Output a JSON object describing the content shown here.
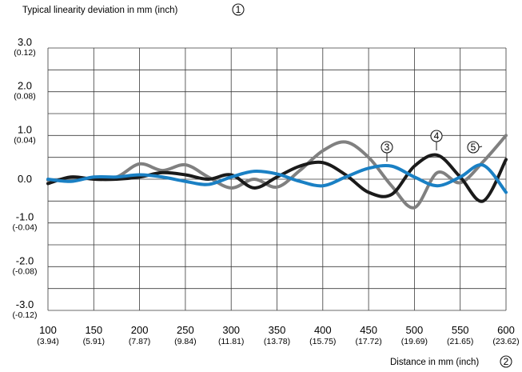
{
  "chart_data": {
    "type": "line",
    "ylabel": "Typical linearity deviation in mm (inch)",
    "ylabel_marker": "1",
    "xlabel": "Distance in mm (inch)",
    "xlabel_marker": "2",
    "xlim": [
      100,
      600
    ],
    "ylim": [
      -3.0,
      3.0
    ],
    "grid": true,
    "x_ticks": [
      {
        "main": "100",
        "sub": "(3.94)"
      },
      {
        "main": "150",
        "sub": "(5.91)"
      },
      {
        "main": "200",
        "sub": "(7.87)"
      },
      {
        "main": "250",
        "sub": "(9.84)"
      },
      {
        "main": "300",
        "sub": "(11.81)"
      },
      {
        "main": "350",
        "sub": "(13.78)"
      },
      {
        "main": "400",
        "sub": "(15.75)"
      },
      {
        "main": "450",
        "sub": "(17.72)"
      },
      {
        "main": "500",
        "sub": "(19.69)"
      },
      {
        "main": "550",
        "sub": "(21.65)"
      },
      {
        "main": "600",
        "sub": "(23.62)"
      }
    ],
    "x_tick_values": [
      100,
      150,
      200,
      250,
      300,
      350,
      400,
      450,
      500,
      550,
      600
    ],
    "y_ticks": [
      {
        "value": 3.0,
        "main": "3.0",
        "sub": "(0.12)"
      },
      {
        "value": 2.0,
        "main": "2.0",
        "sub": "(0.08)"
      },
      {
        "value": 1.0,
        "main": "1.0",
        "sub": "(0.04)"
      },
      {
        "value": 0.0,
        "main": "0.0",
        "sub": ""
      },
      {
        "value": -1.0,
        "main": "-1.0",
        "sub": "(-0.04)"
      },
      {
        "value": -2.0,
        "main": "-2.0",
        "sub": "(-0.08)"
      },
      {
        "value": -3.0,
        "main": "-3.0",
        "sub": "(-0.12)"
      }
    ],
    "series": [
      {
        "marker": "3",
        "color": "#1a80c4",
        "x": [
          100,
          125,
          150,
          175,
          200,
          225,
          250,
          275,
          300,
          325,
          350,
          375,
          400,
          425,
          450,
          475,
          500,
          525,
          550,
          575,
          600
        ],
        "y": [
          0.0,
          -0.05,
          0.05,
          0.05,
          0.1,
          0.05,
          -0.05,
          -0.12,
          0.05,
          0.18,
          0.12,
          -0.05,
          -0.15,
          0.05,
          0.25,
          0.3,
          0.05,
          -0.15,
          0.05,
          0.32,
          -0.3
        ]
      },
      {
        "marker": "4",
        "color": "#1a1a1a",
        "x": [
          100,
          125,
          150,
          175,
          200,
          225,
          250,
          275,
          300,
          325,
          350,
          375,
          400,
          425,
          450,
          475,
          500,
          525,
          550,
          575,
          600
        ],
        "y": [
          -0.1,
          0.05,
          0.0,
          0.0,
          0.05,
          0.15,
          0.1,
          0.0,
          0.1,
          -0.2,
          0.05,
          0.3,
          0.38,
          0.1,
          -0.3,
          -0.35,
          0.3,
          0.55,
          0.05,
          -0.5,
          0.45
        ]
      },
      {
        "marker": "5",
        "color": "#808080",
        "x": [
          100,
          125,
          150,
          175,
          200,
          225,
          250,
          275,
          300,
          325,
          350,
          375,
          400,
          425,
          450,
          475,
          500,
          525,
          550,
          575,
          600
        ],
        "y": [
          -0.02,
          0.0,
          0.02,
          0.05,
          0.35,
          0.2,
          0.33,
          0.05,
          -0.2,
          0.0,
          -0.18,
          0.2,
          0.65,
          0.85,
          0.5,
          -0.15,
          -0.65,
          0.15,
          -0.08,
          0.4,
          1.0
        ]
      }
    ]
  }
}
